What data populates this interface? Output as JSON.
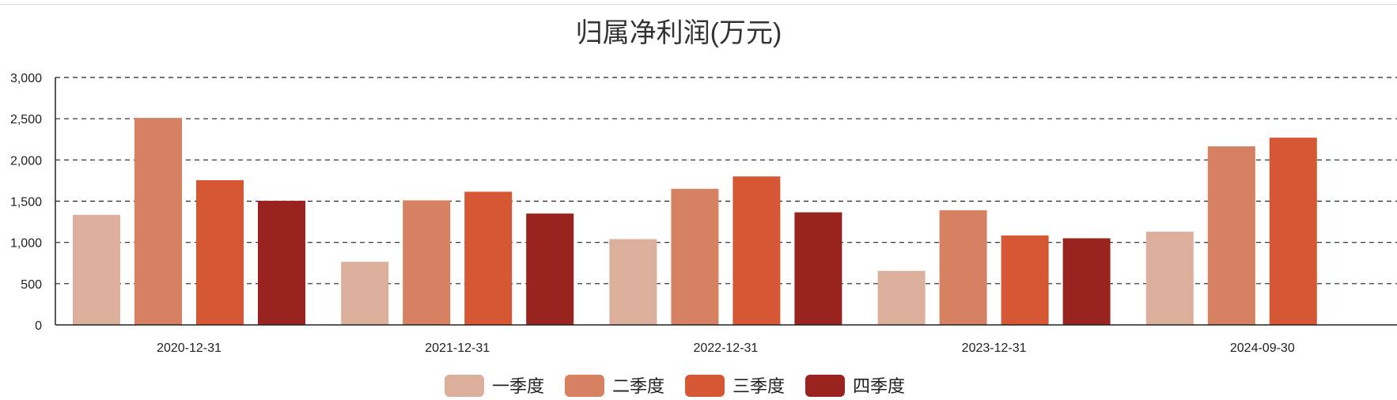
{
  "chart_data": {
    "type": "bar",
    "title": "归属净利润(万元)",
    "xlabel": "",
    "ylabel": "",
    "categories": [
      "2020-12-31",
      "2021-12-31",
      "2022-12-31",
      "2023-12-31",
      "2024-09-30"
    ],
    "series": [
      {
        "name": "一季度",
        "color": "#dcae9c",
        "values": [
          1335,
          765,
          1040,
          655,
          1130
        ]
      },
      {
        "name": "二季度",
        "color": "#d68262",
        "values": [
          2510,
          1510,
          1650,
          1390,
          2165
        ]
      },
      {
        "name": "三季度",
        "color": "#d65734",
        "values": [
          1755,
          1615,
          1800,
          1085,
          2270
        ]
      },
      {
        "name": "四季度",
        "color": "#99231f",
        "values": [
          1505,
          1350,
          1365,
          1050,
          null
        ]
      }
    ],
    "ylim": [
      0,
      3000
    ],
    "yticks": [
      0,
      500,
      1000,
      1500,
      2000,
      2500,
      3000
    ],
    "ytick_labels": [
      "0",
      "500",
      "1,000",
      "1,500",
      "2,000",
      "2,500",
      "3,000"
    ],
    "grid": true,
    "grid_style": "dashed",
    "legend_position": "bottom-center"
  }
}
